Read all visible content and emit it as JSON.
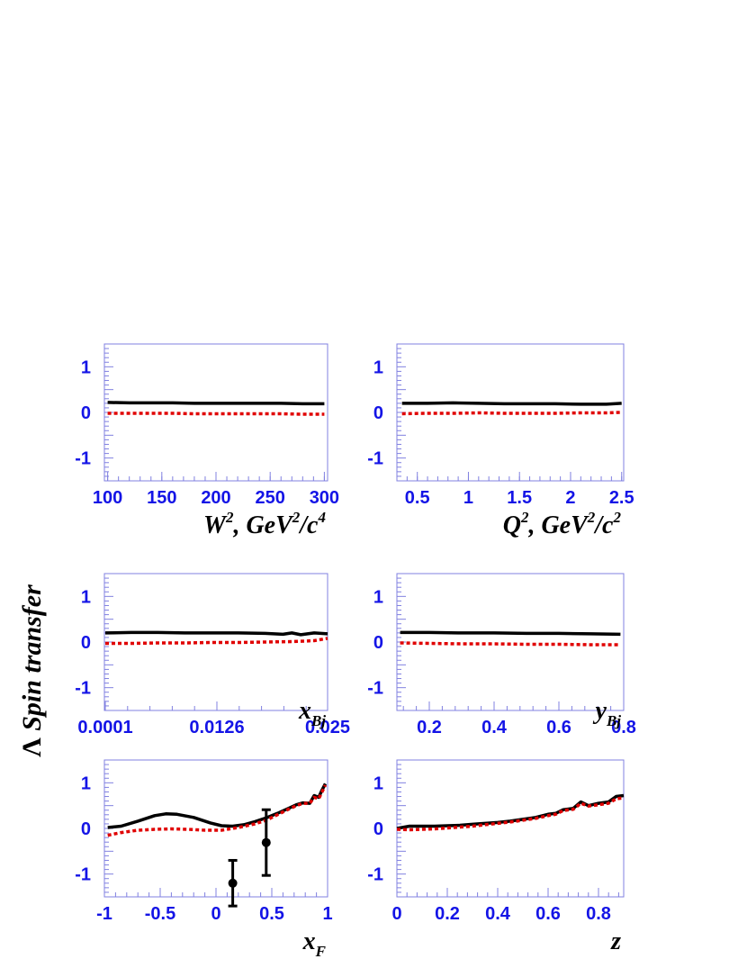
{
  "ylabel": {
    "lambda": "Λ",
    "text": " Spin transfer"
  },
  "chart_data": [
    {
      "type": "line",
      "xlim": [
        97,
        303
      ],
      "ylim": [
        -1.5,
        1.5
      ],
      "xticks": [
        100,
        150,
        200,
        250,
        300
      ],
      "xtick_labels": [
        "100",
        "150",
        "200",
        "250",
        "300"
      ],
      "yticks": [
        1,
        0,
        -1
      ],
      "ytick_labels": [
        "1",
        "0",
        "-1"
      ],
      "xlabel": {
        "base": "W",
        "sup": "2",
        "rest": ", GeV",
        "sup2": "2",
        "rest2": "/c",
        "sup3": "4"
      },
      "series": [
        {
          "style": "solid",
          "x": [
            100,
            120,
            140,
            160,
            180,
            200,
            220,
            240,
            260,
            280,
            300
          ],
          "y": [
            0.22,
            0.21,
            0.21,
            0.21,
            0.2,
            0.2,
            0.2,
            0.2,
            0.2,
            0.19,
            0.19
          ]
        },
        {
          "style": "dotted",
          "x": [
            100,
            120,
            140,
            160,
            180,
            200,
            220,
            240,
            260,
            280,
            300
          ],
          "y": [
            -0.02,
            -0.02,
            -0.02,
            -0.02,
            -0.03,
            -0.03,
            -0.03,
            -0.03,
            -0.03,
            -0.04,
            -0.04
          ]
        }
      ]
    },
    {
      "type": "line",
      "xlim": [
        0.3,
        2.52
      ],
      "ylim": [
        -1.5,
        1.5
      ],
      "xticks": [
        0.5,
        1,
        1.5,
        2,
        2.5
      ],
      "xtick_labels": [
        "0.5",
        "1",
        "1.5",
        "2",
        "2.5"
      ],
      "yticks": [
        1,
        0,
        -1
      ],
      "ytick_labels": [
        "1",
        "0",
        "-1"
      ],
      "xlabel": {
        "base": "Q",
        "sup": "2",
        "rest": ", GeV",
        "sup2": "2",
        "rest2": "/c",
        "sup3": "2"
      },
      "series": [
        {
          "style": "solid",
          "x": [
            0.35,
            0.6,
            0.85,
            1.1,
            1.35,
            1.6,
            1.85,
            2.1,
            2.35,
            2.5
          ],
          "y": [
            0.2,
            0.2,
            0.21,
            0.2,
            0.19,
            0.19,
            0.19,
            0.18,
            0.18,
            0.2
          ]
        },
        {
          "style": "dotted",
          "x": [
            0.35,
            0.6,
            0.85,
            1.1,
            1.35,
            1.6,
            1.85,
            2.1,
            2.35,
            2.5
          ],
          "y": [
            -0.03,
            -0.02,
            -0.02,
            -0.01,
            -0.02,
            -0.02,
            -0.02,
            -0.01,
            -0.01,
            0.0
          ]
        }
      ]
    },
    {
      "type": "line",
      "xlim": [
        0.0,
        0.025
      ],
      "ylim": [
        -1.5,
        1.5
      ],
      "xticks": [
        0.0001,
        0.0126,
        0.025
      ],
      "xtick_labels": [
        "0.0001",
        "0.0126",
        "0.025"
      ],
      "yticks": [
        1,
        0,
        -1
      ],
      "ytick_labels": [
        "1",
        "0",
        "-1"
      ],
      "xlabel": {
        "base": "x",
        "sub": "Bj"
      },
      "series": [
        {
          "style": "solid",
          "x": [
            0.0001,
            0.003,
            0.006,
            0.009,
            0.012,
            0.015,
            0.018,
            0.02,
            0.021,
            0.022,
            0.0235,
            0.025
          ],
          "y": [
            0.2,
            0.21,
            0.21,
            0.2,
            0.2,
            0.2,
            0.19,
            0.17,
            0.2,
            0.16,
            0.2,
            0.18
          ]
        },
        {
          "style": "dotted",
          "x": [
            0.0001,
            0.003,
            0.006,
            0.009,
            0.012,
            0.015,
            0.018,
            0.021,
            0.0235,
            0.025
          ],
          "y": [
            -0.03,
            -0.03,
            -0.02,
            -0.02,
            -0.01,
            -0.01,
            0.0,
            0.01,
            0.03,
            0.08
          ]
        }
      ]
    },
    {
      "type": "line",
      "xlim": [
        0.1,
        0.8
      ],
      "ylim": [
        -1.5,
        1.5
      ],
      "xticks": [
        0.2,
        0.4,
        0.6,
        0.8
      ],
      "xtick_labels": [
        "0.2",
        "0.4",
        "0.6",
        "0.8"
      ],
      "yticks": [
        1,
        0,
        -1
      ],
      "ytick_labels": [
        "1",
        "0",
        "-1"
      ],
      "xlabel": {
        "base": "y",
        "sub": "Bj"
      },
      "series": [
        {
          "style": "solid",
          "x": [
            0.11,
            0.2,
            0.3,
            0.4,
            0.5,
            0.6,
            0.7,
            0.79
          ],
          "y": [
            0.21,
            0.21,
            0.2,
            0.2,
            0.19,
            0.19,
            0.18,
            0.17
          ]
        },
        {
          "style": "dotted",
          "x": [
            0.11,
            0.2,
            0.3,
            0.4,
            0.5,
            0.6,
            0.7,
            0.79
          ],
          "y": [
            -0.02,
            -0.03,
            -0.04,
            -0.04,
            -0.05,
            -0.05,
            -0.06,
            -0.06
          ]
        }
      ]
    },
    {
      "type": "line",
      "xlim": [
        -1.0,
        1.0
      ],
      "ylim": [
        -1.5,
        1.5
      ],
      "xticks": [
        -1,
        -0.5,
        0,
        0.5,
        1
      ],
      "xtick_labels": [
        "-1",
        "-0.5",
        "0",
        "0.5",
        "1"
      ],
      "yticks": [
        1,
        0,
        -1
      ],
      "ytick_labels": [
        "1",
        "0",
        "-1"
      ],
      "xlabel": {
        "base": "x",
        "sub": "F"
      },
      "series": [
        {
          "style": "solid",
          "x": [
            -0.97,
            -0.85,
            -0.7,
            -0.55,
            -0.45,
            -0.35,
            -0.2,
            -0.05,
            0.05,
            0.15,
            0.25,
            0.35,
            0.45,
            0.55,
            0.65,
            0.72,
            0.78,
            0.84,
            0.88,
            0.92,
            0.95,
            0.98
          ],
          "y": [
            0.02,
            0.05,
            0.16,
            0.28,
            0.32,
            0.31,
            0.24,
            0.12,
            0.06,
            0.05,
            0.08,
            0.15,
            0.23,
            0.33,
            0.44,
            0.52,
            0.56,
            0.55,
            0.72,
            0.68,
            0.84,
            0.98
          ]
        },
        {
          "style": "dotted",
          "x": [
            -0.97,
            -0.85,
            -0.7,
            -0.55,
            -0.4,
            -0.25,
            -0.1,
            0.05,
            0.2,
            0.35,
            0.45,
            0.55,
            0.65,
            0.72,
            0.78,
            0.84,
            0.88,
            0.92,
            0.95,
            0.98
          ],
          "y": [
            -0.15,
            -0.09,
            -0.04,
            -0.02,
            -0.01,
            -0.02,
            -0.04,
            -0.04,
            0.02,
            0.1,
            0.18,
            0.3,
            0.42,
            0.5,
            0.55,
            0.55,
            0.68,
            0.65,
            0.8,
            0.95
          ]
        }
      ],
      "points": [
        {
          "x": 0.15,
          "y": -1.2,
          "err": 0.5
        },
        {
          "x": 0.45,
          "y": -0.31,
          "err": 0.72
        }
      ]
    },
    {
      "type": "line",
      "xlim": [
        0.0,
        0.9
      ],
      "ylim": [
        -1.5,
        1.5
      ],
      "xticks": [
        0,
        0.2,
        0.4,
        0.6,
        0.8
      ],
      "xtick_labels": [
        "0",
        "0.2",
        "0.4",
        "0.6",
        "0.8"
      ],
      "yticks": [
        1,
        0,
        -1
      ],
      "ytick_labels": [
        "1",
        "0",
        "-1"
      ],
      "xlabel": {
        "base": "z",
        "sub": ""
      },
      "series": [
        {
          "style": "solid",
          "x": [
            0.0,
            0.05,
            0.1,
            0.15,
            0.2,
            0.25,
            0.3,
            0.35,
            0.4,
            0.45,
            0.5,
            0.55,
            0.6,
            0.63,
            0.66,
            0.7,
            0.73,
            0.76,
            0.8,
            0.84,
            0.87,
            0.9
          ],
          "y": [
            0.0,
            0.05,
            0.05,
            0.05,
            0.06,
            0.07,
            0.09,
            0.11,
            0.13,
            0.16,
            0.2,
            0.24,
            0.31,
            0.33,
            0.41,
            0.44,
            0.58,
            0.5,
            0.55,
            0.58,
            0.7,
            0.72
          ]
        },
        {
          "style": "dotted",
          "x": [
            0.0,
            0.05,
            0.1,
            0.15,
            0.2,
            0.25,
            0.3,
            0.35,
            0.4,
            0.45,
            0.5,
            0.55,
            0.6,
            0.63,
            0.66,
            0.7,
            0.73,
            0.76,
            0.8,
            0.84,
            0.87,
            0.9
          ],
          "y": [
            -0.02,
            -0.03,
            -0.02,
            -0.01,
            0.01,
            0.03,
            0.05,
            0.08,
            0.11,
            0.14,
            0.18,
            0.22,
            0.28,
            0.31,
            0.39,
            0.42,
            0.55,
            0.49,
            0.52,
            0.55,
            0.65,
            0.67
          ]
        }
      ]
    }
  ]
}
